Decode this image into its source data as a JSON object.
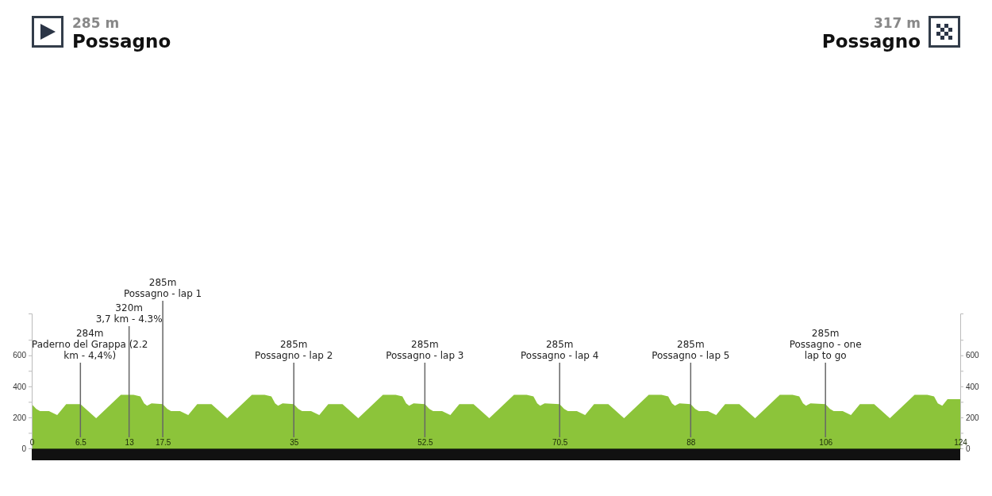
{
  "chart_data": {
    "type": "area",
    "x": [
      0,
      0.6,
      1.1,
      2.3,
      3.4,
      4.6,
      6.5,
      8.6,
      11.9,
      13.6,
      14.5,
      15,
      15.4,
      16,
      17.5,
      18.1,
      18.6,
      19.8,
      20.9,
      22.1,
      24,
      26.1,
      29.4,
      31.1,
      32,
      32.5,
      32.9,
      33.5,
      35,
      35.6,
      36.1,
      37.3,
      38.4,
      39.6,
      41.5,
      43.6,
      46.9,
      48.6,
      49.5,
      50,
      50.4,
      51,
      52.5,
      53.1,
      53.6,
      54.8,
      55.9,
      57.1,
      59,
      61.1,
      64.4,
      66.1,
      67,
      67.5,
      67.9,
      68.5,
      70.5,
      71.1,
      71.6,
      72.8,
      73.9,
      75.1,
      77,
      79.1,
      82.4,
      84.1,
      85,
      85.5,
      85.9,
      86.5,
      88,
      88.6,
      89.1,
      90.3,
      91.4,
      92.6,
      94.5,
      96.6,
      99.9,
      101.6,
      102.5,
      103,
      103.4,
      104,
      106,
      106.6,
      107.1,
      108.3,
      109.4,
      110.6,
      112.5,
      114.6,
      117.9,
      119.6,
      120.5,
      121,
      121.6,
      122.3,
      124
    ],
    "series": [
      {
        "color": "#8cc43a",
        "values": [
          285,
          255,
          240,
          240,
          215,
          285,
          285,
          195,
          345,
          345,
          335,
          290,
          275,
          290,
          285,
          255,
          240,
          240,
          215,
          285,
          285,
          195,
          345,
          345,
          335,
          290,
          275,
          290,
          285,
          255,
          240,
          240,
          215,
          285,
          285,
          195,
          345,
          345,
          335,
          290,
          275,
          290,
          285,
          255,
          240,
          240,
          215,
          285,
          285,
          195,
          345,
          345,
          335,
          290,
          275,
          290,
          285,
          255,
          240,
          240,
          215,
          285,
          285,
          195,
          345,
          345,
          335,
          290,
          275,
          290,
          285,
          255,
          240,
          240,
          215,
          285,
          285,
          195,
          345,
          345,
          335,
          290,
          275,
          290,
          285,
          255,
          240,
          240,
          215,
          285,
          285,
          195,
          345,
          345,
          335,
          290,
          275,
          317,
          317
        ]
      }
    ],
    "xlim": [
      0,
      124
    ],
    "xticks": [
      0,
      6.5,
      13,
      17.5,
      35,
      52.5,
      70.5,
      88,
      106,
      124
    ],
    "ylim": [
      0,
      870
    ],
    "yticks": [
      0,
      {
        "value": 100,
        "label": null
      },
      200,
      {
        "value": 300,
        "label": null
      },
      400,
      {
        "value": 500,
        "label": null
      },
      600,
      {
        "value": 700,
        "label": null
      }
    ],
    "y2lim": [
      0,
      870
    ],
    "y2ticks": [
      0,
      {
        "value": 100,
        "label": null
      },
      200,
      {
        "value": 300,
        "label": null
      },
      400,
      {
        "value": 500,
        "label": null
      },
      600,
      {
        "value": 700,
        "label": null
      }
    ],
    "annotations": [
      "285 m",
      "Possagno",
      "317 m",
      "Possagno"
    ],
    "ref_lines": [
      {
        "axis": "x",
        "value": 6.5,
        "label": "284m\nPaderno del Grappa (2.2\nkm - 4,4%)"
      },
      {
        "axis": "x",
        "value": 13,
        "label": "320m\n3,7 km - 4.3%"
      },
      {
        "axis": "x",
        "value": 17.5,
        "label": "285m\nPossagno - lap 1"
      },
      {
        "axis": "x",
        "value": 35,
        "label": "285m\nPossagno - lap 2"
      },
      {
        "axis": "x",
        "value": 52.5,
        "label": "285m\nPossagno - lap 3"
      },
      {
        "axis": "x",
        "value": 70.5,
        "label": "285m\nPossagno - lap 4"
      },
      {
        "axis": "x",
        "value": 88,
        "label": "285m\nPossagno - lap 5"
      },
      {
        "axis": "x",
        "value": 106,
        "label": "285m\nPossagno - one\nlap to go"
      }
    ]
  }
}
